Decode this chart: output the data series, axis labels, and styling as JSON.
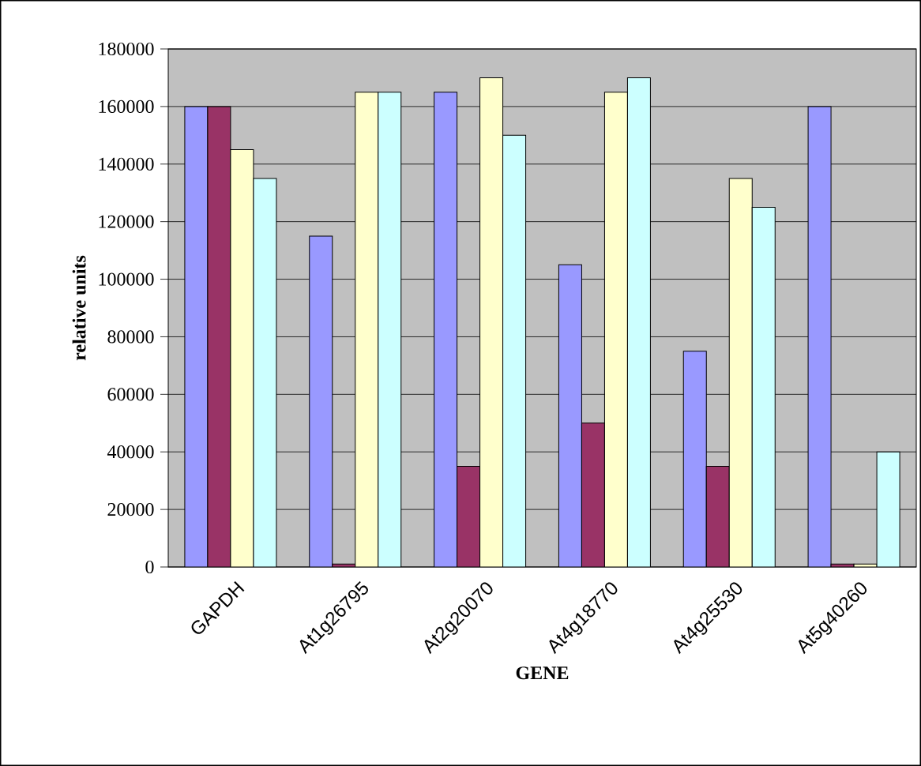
{
  "chart_data": {
    "type": "bar",
    "xlabel": "GENE",
    "ylabel": "relative units",
    "categories": [
      "GAPDH",
      "At1g26795",
      "At2g20070",
      "At4g18770",
      "At4g25530",
      "At5g40260"
    ],
    "series": [
      {
        "color": "#9999ff",
        "values": [
          160000,
          115000,
          165000,
          105000,
          75000,
          160000
        ]
      },
      {
        "color": "#993366",
        "values": [
          160000,
          1000,
          35000,
          50000,
          35000,
          1000
        ]
      },
      {
        "color": "#ffffcc",
        "values": [
          145000,
          165000,
          170000,
          165000,
          135000,
          1000
        ]
      },
      {
        "color": "#ccffff",
        "values": [
          135000,
          165000,
          150000,
          170000,
          125000,
          40000
        ]
      }
    ],
    "ylim": [
      0,
      180000
    ],
    "yticks": [
      0,
      20000,
      40000,
      60000,
      80000,
      100000,
      120000,
      140000,
      160000,
      180000
    ],
    "grid": "y"
  }
}
